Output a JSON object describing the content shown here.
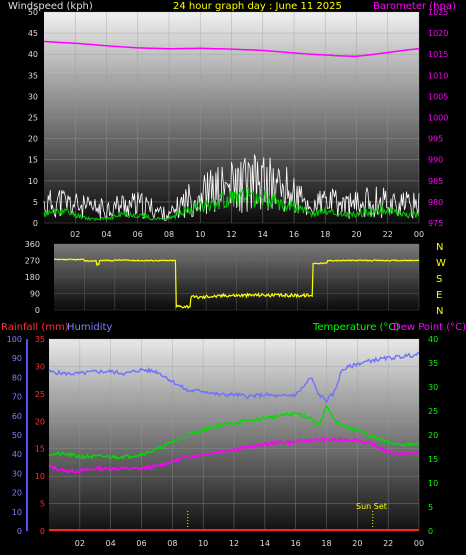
{
  "header": {
    "wind_label": "Windspeed (kph)",
    "title": "24 hour graph day : June 11 2025",
    "baro_label": "Barometer (hpa)"
  },
  "lower_header": {
    "rain_label": "Rainfall (mm)",
    "humidity_label": "Humidity",
    "temp_label": "Temperature (°C)",
    "dew_label": "Dew Point (°C)"
  },
  "compass": [
    "N",
    "W",
    "S",
    "E",
    "N"
  ],
  "sunset_label": "Sun Set",
  "colors": {
    "wind": "#ffffff",
    "gust_avg": "#00cc00",
    "barometer": "#ff00ff",
    "direction": "#ffff00",
    "rain": "#ff2020",
    "humidity": "#7070ff",
    "temperature": "#00dd00",
    "dewpoint": "#ff00ff",
    "sunset": "#ffff00"
  },
  "chart_data": [
    {
      "type": "line",
      "title": "24 hour graph day : June 11 2025",
      "x_ticks": [
        "02",
        "04",
        "06",
        "08",
        "10",
        "12",
        "14",
        "16",
        "18",
        "20",
        "22",
        "00"
      ],
      "xlim": [
        0,
        24
      ],
      "ylabel_left": "Windspeed (kph)",
      "ylim_left": [
        0,
        50
      ],
      "yticks_left": [
        0,
        5,
        10,
        15,
        20,
        25,
        30,
        35,
        40,
        45,
        50
      ],
      "ylabel_right": "Barometer (hpa)",
      "ylim_right": [
        975,
        1025
      ],
      "yticks_right": [
        975,
        980,
        985,
        990,
        995,
        1000,
        1005,
        1010,
        1015,
        1020,
        1025
      ],
      "grid": true,
      "series": [
        {
          "axis": "left",
          "x": [
            0,
            1,
            2,
            3,
            4,
            5,
            6,
            7,
            8,
            9,
            10,
            11,
            12,
            13,
            14,
            15,
            16,
            17,
            18,
            19,
            20,
            21,
            22,
            23,
            24
          ],
          "values": [
            5,
            6,
            5,
            4,
            4,
            5,
            5,
            4,
            2,
            6,
            8,
            9,
            10,
            11,
            11,
            10,
            8,
            4,
            6,
            5,
            5,
            6,
            6,
            5,
            5
          ]
        },
        {
          "axis": "left",
          "x": [
            0,
            1,
            2,
            3,
            4,
            5,
            6,
            7,
            8,
            9,
            10,
            11,
            12,
            13,
            14,
            15,
            16,
            17,
            18,
            19,
            20,
            21,
            22,
            23,
            24
          ],
          "values": [
            2,
            3,
            2,
            1,
            1,
            2,
            2,
            1,
            1,
            3,
            4,
            5,
            6,
            6,
            6,
            5,
            4,
            2,
            3,
            2,
            2,
            3,
            3,
            2,
            2
          ]
        },
        {
          "axis": "right",
          "x": [
            0,
            2,
            4,
            6,
            8,
            10,
            12,
            14,
            16,
            17,
            18,
            19,
            20,
            21,
            22,
            23,
            24
          ],
          "values": [
            1018,
            1017.6,
            1017,
            1016.5,
            1016.3,
            1016.4,
            1016.2,
            1015.9,
            1015.3,
            1015,
            1014.8,
            1014.6,
            1014.5,
            1014.9,
            1015.4,
            1015.9,
            1016.3
          ]
        }
      ]
    },
    {
      "type": "scatter",
      "x_ticks": [
        "02",
        "04",
        "06",
        "08",
        "10",
        "12",
        "14",
        "16",
        "18",
        "20",
        "22",
        "00"
      ],
      "xlim": [
        0,
        24
      ],
      "ylim": [
        0,
        360
      ],
      "yticks": [
        0,
        90,
        180,
        270,
        360
      ],
      "series": [
        {
          "x": [
            0,
            1,
            2,
            2.8,
            3,
            4,
            5,
            6,
            7,
            7.9,
            8,
            9,
            10,
            11,
            12,
            13,
            14,
            15,
            16,
            16.8,
            17,
            18,
            19,
            20,
            21,
            22,
            23,
            24
          ],
          "values": [
            275,
            275,
            268,
            248,
            270,
            272,
            270,
            270,
            270,
            270,
            20,
            70,
            75,
            80,
            80,
            82,
            80,
            80,
            80,
            78,
            255,
            270,
            270,
            270,
            270,
            270,
            270,
            270
          ]
        }
      ]
    },
    {
      "type": "line",
      "x_ticks": [
        "02",
        "04",
        "06",
        "08",
        "10",
        "12",
        "14",
        "16",
        "18",
        "20",
        "22",
        "00"
      ],
      "xlim": [
        0,
        24
      ],
      "ylabel_left": "Rainfall (mm)",
      "ylim_rain": [
        0,
        35
      ],
      "yticks_rain": [
        0,
        5,
        10,
        15,
        20,
        25,
        30,
        35
      ],
      "ylim_humidity": [
        0,
        100
      ],
      "yticks_humidity": [
        0,
        10,
        20,
        30,
        40,
        50,
        60,
        70,
        80,
        90,
        100
      ],
      "ylabel_right": "Temperature (°C)",
      "ylim_temp": [
        0,
        40
      ],
      "yticks_temp": [
        0,
        5,
        10,
        15,
        20,
        25,
        30,
        35,
        40
      ],
      "grid": true,
      "sunset_x": 21,
      "marker_x": 9,
      "series": [
        {
          "axis": "rain",
          "x": [
            0,
            24
          ],
          "values": [
            0,
            0
          ]
        },
        {
          "axis": "humidity",
          "x": [
            0,
            1,
            2,
            3,
            4,
            5,
            6,
            7,
            8,
            9,
            10,
            11,
            12,
            13,
            14,
            15,
            16,
            16.5,
            17,
            17.5,
            18,
            18.5,
            19,
            20,
            21,
            22,
            23,
            24
          ],
          "values": [
            83,
            82,
            82,
            83,
            83,
            82,
            84,
            83,
            78,
            73,
            73,
            71,
            71,
            70,
            71,
            70,
            71,
            75,
            80,
            71,
            68,
            72,
            84,
            87,
            89,
            90,
            91,
            92
          ]
        },
        {
          "axis": "temp",
          "x": [
            0,
            1,
            2,
            3,
            4,
            5,
            6,
            7,
            8,
            9,
            10,
            11,
            12,
            13,
            14,
            15,
            16,
            16.5,
            17,
            17.5,
            18,
            18.5,
            19,
            20,
            21,
            22,
            23,
            24
          ],
          "values": [
            16,
            16,
            15.5,
            15.5,
            15.5,
            15.5,
            16,
            17,
            18.5,
            20,
            21,
            22,
            22.5,
            23,
            23.5,
            24,
            24.5,
            24,
            23.5,
            22,
            26,
            23,
            22,
            21,
            19.5,
            18.5,
            18,
            18
          ]
        },
        {
          "axis": "temp",
          "x": [
            0,
            1,
            2,
            3,
            4,
            5,
            6,
            7,
            8,
            9,
            10,
            11,
            12,
            13,
            14,
            15,
            16,
            17,
            18,
            19,
            20,
            21,
            22,
            23,
            24
          ],
          "values": [
            13.5,
            12.5,
            12.5,
            13,
            13,
            13,
            13,
            13.5,
            14.5,
            15.5,
            16,
            16.5,
            17,
            17.5,
            18,
            18.5,
            18.5,
            19,
            19,
            19,
            19,
            18,
            16.5,
            16,
            16.5
          ]
        }
      ]
    }
  ]
}
